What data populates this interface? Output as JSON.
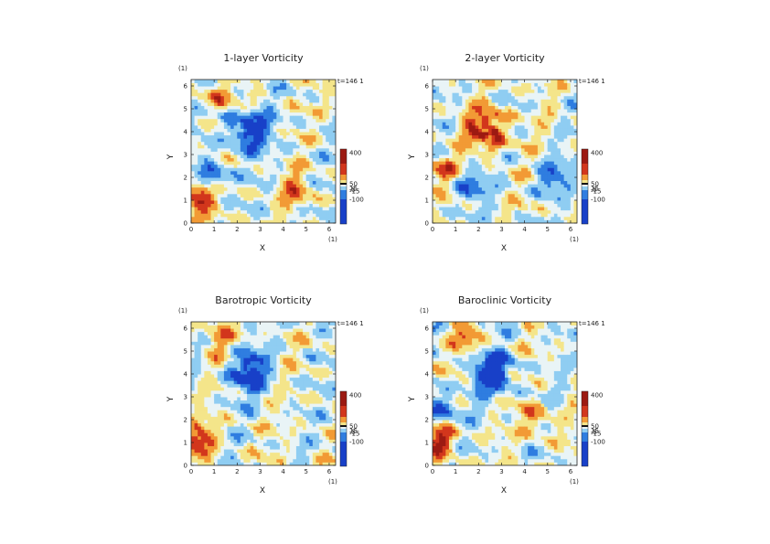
{
  "figure": {
    "colors": {
      "deep_blue": "#1840c8",
      "blue": "#2f7de0",
      "light_blue": "#8fcdf2",
      "pale": "#e9f4f6",
      "yellow": "#f4e58a",
      "orange": "#f29a35",
      "red": "#d2361c",
      "dark_red": "#9c1a12"
    }
  },
  "chart_data": [
    {
      "type": "heatmap",
      "title": "1-layer Vorticity",
      "xlabel": "X",
      "ylabel": "Y",
      "x_unit": "(1)",
      "y_unit": "(1)",
      "x_ticks": [
        "0",
        "1",
        "2",
        "3",
        "4",
        "5",
        "6"
      ],
      "y_ticks": [
        "0",
        "1",
        "2",
        "3",
        "4",
        "5",
        "6"
      ],
      "xlim": [
        0,
        6.28
      ],
      "ylim": [
        0,
        6.28
      ],
      "time_label": "t=146 1",
      "colorbar_labels": [
        "400",
        "50",
        "15",
        "-5",
        "-15",
        "-100"
      ],
      "features": [
        {
          "x": 2.5,
          "y": 4.1,
          "kind": "negative vortex",
          "strength": -1.0
        },
        {
          "x": 1.0,
          "y": 2.1,
          "kind": "negative band",
          "strength": -0.6
        },
        {
          "x": 0.25,
          "y": 1.1,
          "kind": "positive blob",
          "strength": 0.9
        },
        {
          "x": 4.6,
          "y": 1.4,
          "kind": "positive region",
          "strength": 0.5
        },
        {
          "x": 1.2,
          "y": 5.6,
          "kind": "positive region",
          "strength": 0.5
        }
      ]
    },
    {
      "type": "heatmap",
      "title": "2-layer Vorticity",
      "xlabel": "X",
      "ylabel": "Y",
      "x_unit": "(1)",
      "y_unit": "(1)",
      "x_ticks": [
        "0",
        "1",
        "2",
        "3",
        "4",
        "5",
        "6"
      ],
      "y_ticks": [
        "0",
        "1",
        "2",
        "3",
        "4",
        "5",
        "6"
      ],
      "xlim": [
        0,
        6.28
      ],
      "ylim": [
        0,
        6.28
      ],
      "time_label": "t=146 1",
      "colorbar_labels": [
        "400",
        "50",
        "15",
        "-5",
        "-15",
        "-100"
      ],
      "features": [
        {
          "x": 2.4,
          "y": 4.1,
          "kind": "positive vortex",
          "strength": 0.9
        },
        {
          "x": 5.2,
          "y": 2.0,
          "kind": "negative region",
          "strength": -0.6
        },
        {
          "x": 1.6,
          "y": 1.6,
          "kind": "negative band",
          "strength": -0.6
        },
        {
          "x": 0.4,
          "y": 2.3,
          "kind": "positive region",
          "strength": 0.5
        }
      ]
    },
    {
      "type": "heatmap",
      "title": "Barotropic Vorticity",
      "xlabel": "X",
      "ylabel": "Y",
      "x_unit": "(1)",
      "y_unit": "(1)",
      "x_ticks": [
        "0",
        "1",
        "2",
        "3",
        "4",
        "5",
        "6"
      ],
      "y_ticks": [
        "0",
        "1",
        "2",
        "3",
        "4",
        "5",
        "6"
      ],
      "xlim": [
        0,
        6.28
      ],
      "ylim": [
        0,
        6.28
      ],
      "time_label": "t=146 1",
      "colorbar_labels": [
        "400",
        "50",
        "15",
        "-5",
        "-15",
        "-100"
      ],
      "features": [
        {
          "x": 2.5,
          "y": 4.1,
          "kind": "negative vortex",
          "strength": -0.9
        },
        {
          "x": 0.3,
          "y": 1.1,
          "kind": "positive blob",
          "strength": 0.8
        },
        {
          "x": 1.2,
          "y": 5.4,
          "kind": "positive region",
          "strength": 0.4
        }
      ]
    },
    {
      "type": "heatmap",
      "title": "Baroclinic Vorticity",
      "xlabel": "X",
      "ylabel": "Y",
      "x_unit": "(1)",
      "y_unit": "(1)",
      "x_ticks": [
        "0",
        "1",
        "2",
        "3",
        "4",
        "5",
        "6"
      ],
      "y_ticks": [
        "0",
        "1",
        "2",
        "3",
        "4",
        "5",
        "6"
      ],
      "xlim": [
        0,
        6.28
      ],
      "ylim": [
        0,
        6.28
      ],
      "time_label": "t=146 1",
      "colorbar_labels": [
        "400",
        "50",
        "15",
        "-5",
        "-15",
        "-100"
      ],
      "features": [
        {
          "x": 2.6,
          "y": 4.1,
          "kind": "negative vortex",
          "strength": -1.0
        },
        {
          "x": 0.4,
          "y": 2.5,
          "kind": "negative band",
          "strength": -0.7
        },
        {
          "x": 0.3,
          "y": 1.1,
          "kind": "positive blob",
          "strength": 0.8
        },
        {
          "x": 4.5,
          "y": 2.0,
          "kind": "positive region",
          "strength": 0.5
        },
        {
          "x": 1.5,
          "y": 5.6,
          "kind": "positive region",
          "strength": 0.5
        }
      ]
    }
  ]
}
